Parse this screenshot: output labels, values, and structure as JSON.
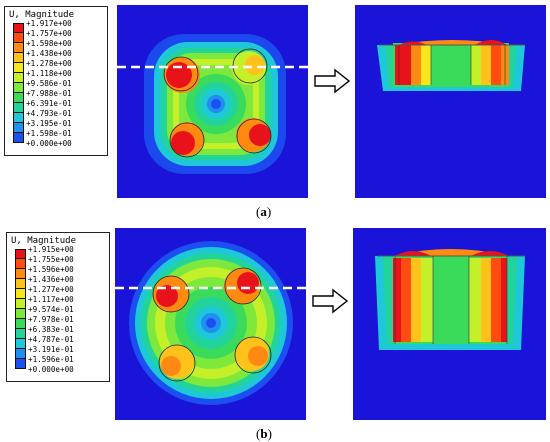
{
  "figure": {
    "panels": [
      {
        "id": "a",
        "caption_prefix": "(",
        "caption_letter": "a",
        "caption_suffix": ")",
        "legend": {
          "title": "U, Magnitude",
          "values": [
            "+1.917e+00",
            "+1.757e+00",
            "+1.598e+00",
            "+1.438e+00",
            "+1.278e+00",
            "+1.118e+00",
            "+9.586e-01",
            "+7.988e-01",
            "+6.391e-01",
            "+4.793e-01",
            "+3.195e-01",
            "+1.598e-01",
            "+0.000e+00"
          ]
        }
      },
      {
        "id": "b",
        "caption_prefix": "(",
        "caption_letter": "b",
        "caption_suffix": ")",
        "legend": {
          "title": "U, Magnitude",
          "values": [
            "+1.915e+00",
            "+1.755e+00",
            "+1.596e+00",
            "+1.436e+00",
            "+1.277e+00",
            "+1.117e+00",
            "+9.574e-01",
            "+7.978e-01",
            "+6.383e-01",
            "+4.787e-01",
            "+3.191e-01",
            "+1.596e-01",
            "+0.000e+00"
          ]
        }
      }
    ],
    "colormap": [
      "#e8121a",
      "#ff4d12",
      "#ff8a12",
      "#ffc21a",
      "#f5e61e",
      "#c4f02a",
      "#7ee83c",
      "#3adb5a",
      "#22d49a",
      "#1ec8d8",
      "#1f8ff0",
      "#1c4ff0",
      "#1a14d8"
    ]
  }
}
